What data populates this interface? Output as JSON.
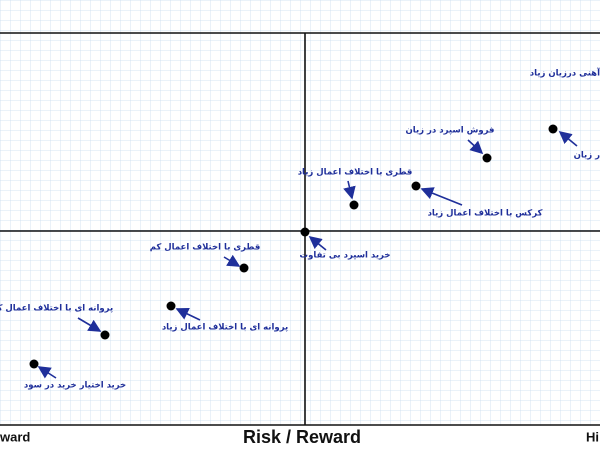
{
  "axis": {
    "title": "Risk / Reward",
    "left": "ward",
    "right": "Hi"
  },
  "strategies": [
    {
      "label": "آهنی درزیان زیاد"
    },
    {
      "label": "فروش اسپرد در زیان"
    },
    {
      "label": "ر زیان"
    },
    {
      "label": "قطری با اختلاف اعمال زیاد"
    },
    {
      "label": "کرکس با اختلاف اعمال زیاد"
    },
    {
      "label": "خرید اسپرد بی تفاوت"
    },
    {
      "label": "قطری با اختلاف اعمال کم"
    },
    {
      "label": "پروانه ای با اختلاف اعمال زیاد"
    },
    {
      "label": "پروانه ای با اختلاف اعمال کم"
    },
    {
      "label": "خرید اختیار خرید در سود"
    }
  ]
}
